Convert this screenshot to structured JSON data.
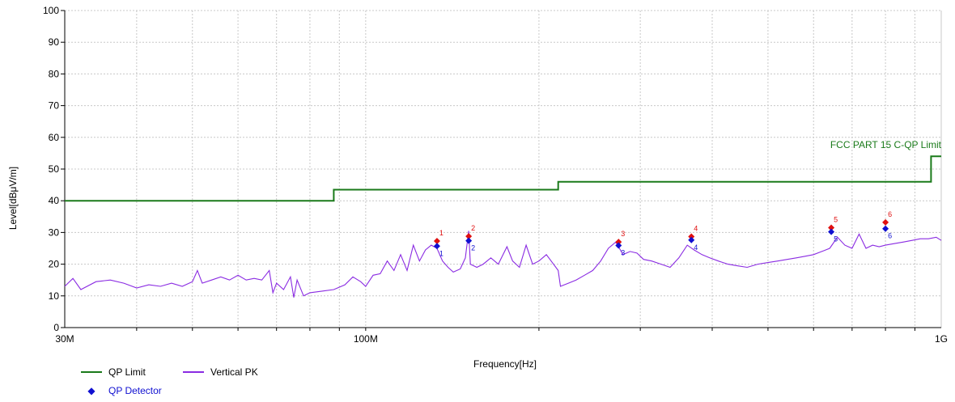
{
  "chart_data": {
    "type": "line",
    "xlabel": "Frequency[Hz]",
    "ylabel": "Level[dBμV/m]",
    "x_scale": "log",
    "xlim": [
      30000000,
      1000000000
    ],
    "ylim": [
      0,
      100
    ],
    "y_ticks": [
      0,
      10,
      20,
      30,
      40,
      50,
      60,
      70,
      80,
      90,
      100
    ],
    "x_tick_labels": [
      {
        "value": 30000000,
        "label": "30M"
      },
      {
        "value": 100000000,
        "label": "100M"
      },
      {
        "value": 1000000000,
        "label": "1G"
      }
    ],
    "grid": true,
    "limit_annotation": "FCC PART 15 C-QP Limit",
    "series": [
      {
        "name": "QP Limit",
        "color": "#1a7a1a",
        "step": true,
        "points": [
          [
            30000000,
            40
          ],
          [
            88000000,
            40
          ],
          [
            88000000,
            43.5
          ],
          [
            216000000,
            43.5
          ],
          [
            216000000,
            46
          ],
          [
            960000000,
            46
          ],
          [
            960000000,
            54
          ],
          [
            1000000000,
            54
          ]
        ]
      },
      {
        "name": "Vertical PK",
        "color": "#8a2be2",
        "points": [
          [
            30000000,
            13
          ],
          [
            31000000,
            15.5
          ],
          [
            32000000,
            12
          ],
          [
            34000000,
            14.5
          ],
          [
            36000000,
            15
          ],
          [
            38000000,
            14
          ],
          [
            40000000,
            12.5
          ],
          [
            42000000,
            13.5
          ],
          [
            44000000,
            13
          ],
          [
            46000000,
            14
          ],
          [
            48000000,
            13
          ],
          [
            50000000,
            14.5
          ],
          [
            51000000,
            18
          ],
          [
            52000000,
            14
          ],
          [
            54000000,
            15
          ],
          [
            56000000,
            16
          ],
          [
            58000000,
            15
          ],
          [
            60000000,
            16.5
          ],
          [
            62000000,
            15
          ],
          [
            64000000,
            15.5
          ],
          [
            66000000,
            15
          ],
          [
            68000000,
            18
          ],
          [
            69000000,
            11
          ],
          [
            70000000,
            14
          ],
          [
            72000000,
            12
          ],
          [
            74000000,
            16
          ],
          [
            75000000,
            9.5
          ],
          [
            76000000,
            15
          ],
          [
            78000000,
            10
          ],
          [
            80000000,
            11
          ],
          [
            84000000,
            11.5
          ],
          [
            88000000,
            12
          ],
          [
            92000000,
            13.5
          ],
          [
            95000000,
            16
          ],
          [
            98000000,
            14.5
          ],
          [
            100000000,
            13
          ],
          [
            103000000,
            16.5
          ],
          [
            106000000,
            17
          ],
          [
            109000000,
            21
          ],
          [
            112000000,
            18
          ],
          [
            115000000,
            23
          ],
          [
            118000000,
            18
          ],
          [
            121000000,
            26
          ],
          [
            124000000,
            21
          ],
          [
            127000000,
            24.5
          ],
          [
            130000000,
            26
          ],
          [
            133000000,
            25
          ],
          [
            136000000,
            21
          ],
          [
            139000000,
            19
          ],
          [
            142000000,
            17.5
          ],
          [
            146000000,
            18.5
          ],
          [
            149000000,
            22
          ],
          [
            151000000,
            30.5
          ],
          [
            152000000,
            20
          ],
          [
            156000000,
            19
          ],
          [
            160000000,
            20
          ],
          [
            165000000,
            22
          ],
          [
            170000000,
            20
          ],
          [
            176000000,
            25.5
          ],
          [
            180000000,
            21
          ],
          [
            185000000,
            19
          ],
          [
            190000000,
            26
          ],
          [
            195000000,
            20
          ],
          [
            200000000,
            21
          ],
          [
            206000000,
            23
          ],
          [
            212000000,
            20
          ],
          [
            216000000,
            18
          ],
          [
            218000000,
            13
          ],
          [
            225000000,
            14
          ],
          [
            232000000,
            15
          ],
          [
            240000000,
            16.5
          ],
          [
            248000000,
            18
          ],
          [
            256000000,
            21
          ],
          [
            264000000,
            25
          ],
          [
            272000000,
            27
          ],
          [
            280000000,
            23
          ],
          [
            288000000,
            24
          ],
          [
            296000000,
            23.5
          ],
          [
            304000000,
            21.5
          ],
          [
            314000000,
            21
          ],
          [
            326000000,
            20
          ],
          [
            338000000,
            19
          ],
          [
            350000000,
            22
          ],
          [
            362000000,
            26
          ],
          [
            372000000,
            24.5
          ],
          [
            384000000,
            23
          ],
          [
            396000000,
            22
          ],
          [
            410000000,
            21
          ],
          [
            426000000,
            20
          ],
          [
            442000000,
            19.5
          ],
          [
            460000000,
            19
          ],
          [
            480000000,
            20
          ],
          [
            500000000,
            20.5
          ],
          [
            520000000,
            21
          ],
          [
            540000000,
            21.5
          ],
          [
            560000000,
            22
          ],
          [
            580000000,
            22.5
          ],
          [
            600000000,
            23
          ],
          [
            620000000,
            24
          ],
          [
            640000000,
            25
          ],
          [
            660000000,
            28.5
          ],
          [
            680000000,
            26
          ],
          [
            700000000,
            25
          ],
          [
            720000000,
            29.5
          ],
          [
            740000000,
            25
          ],
          [
            760000000,
            26
          ],
          [
            780000000,
            25.5
          ],
          [
            800000000,
            26
          ],
          [
            830000000,
            26.5
          ],
          [
            860000000,
            27
          ],
          [
            890000000,
            27.5
          ],
          [
            920000000,
            28
          ],
          [
            950000000,
            28
          ],
          [
            980000000,
            28.5
          ],
          [
            1000000000,
            27.5
          ]
        ]
      }
    ],
    "markers": [
      {
        "label": "1",
        "freq": 133000000,
        "peak": 27.3,
        "qp": 25.7
      },
      {
        "label": "2",
        "freq": 151000000,
        "peak": 28.8,
        "qp": 27.4
      },
      {
        "label": "3",
        "freq": 275000000,
        "peak": 27.0,
        "qp": 25.9
      },
      {
        "label": "4",
        "freq": 368000000,
        "peak": 28.7,
        "qp": 27.6
      },
      {
        "label": "5",
        "freq": 644000000,
        "peak": 31.5,
        "qp": 30.2
      },
      {
        "label": "6",
        "freq": 800000000,
        "peak": 33.2,
        "qp": 31.2
      }
    ]
  },
  "legend": {
    "qp_limit": "QP Limit",
    "vertical_pk": "Vertical PK",
    "qp_detector": "QP Detector",
    "qp_limit_color": "#1a7a1a",
    "vertical_pk_color": "#8a2be2",
    "qp_detector_color": "#1010d0",
    "peak_marker_color": "#e01010"
  }
}
